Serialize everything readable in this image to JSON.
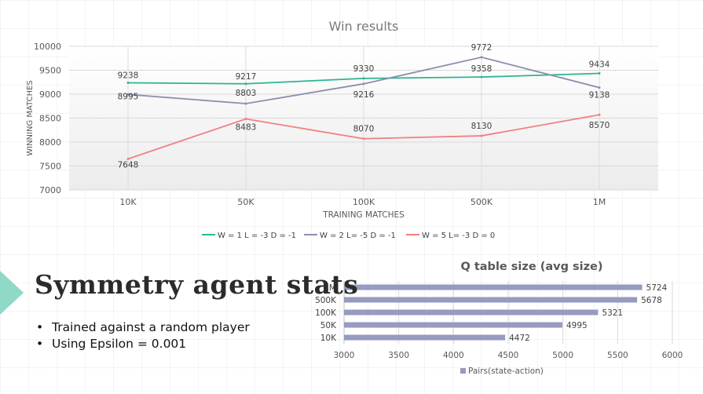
{
  "chart_data": [
    {
      "type": "line",
      "title": "Win results",
      "xlabel": "TRAINING MATCHES",
      "ylabel": "WINNING MATCHES",
      "categories": [
        "10K",
        "50K",
        "100K",
        "500K",
        "1M"
      ],
      "ylim": [
        7000,
        10000
      ],
      "yticks": [
        7000,
        7500,
        8000,
        8500,
        9000,
        9500,
        10000
      ],
      "grid": true,
      "legend": "bottom",
      "series": [
        {
          "name": "W = 1 L = -3 D = -1",
          "color": "#2bb592",
          "values": [
            9238,
            9217,
            9330,
            9358,
            9434
          ]
        },
        {
          "name": "W = 2 L= -5 D = -1",
          "color": "#8b90ad",
          "values": [
            8995,
            8803,
            9216,
            9772,
            9138
          ]
        },
        {
          "name": "W = 5 L= -3 D = 0",
          "color": "#f08080",
          "values": [
            7648,
            8483,
            8070,
            8130,
            8570
          ]
        }
      ]
    },
    {
      "type": "bar",
      "orientation": "horizontal",
      "title": "Q table size (avg size)",
      "categories": [
        "1M",
        "500K",
        "100K",
        "50K",
        "10K"
      ],
      "series": [
        {
          "name": "Pairs(state-action)",
          "color": "#969bbf",
          "values": [
            5724,
            5678,
            5321,
            4995,
            4472
          ]
        }
      ],
      "xlim": [
        3000,
        6000
      ],
      "xticks": [
        3000,
        3500,
        4000,
        4500,
        5000,
        5500,
        6000
      ],
      "grid": true,
      "legend": "bottom"
    }
  ],
  "slide": {
    "title": "Symmetry agent stats",
    "bullets": [
      "Trained against a random player",
      "Using Epsilon = 0.001"
    ],
    "accent_color": "#8fd9c6"
  }
}
